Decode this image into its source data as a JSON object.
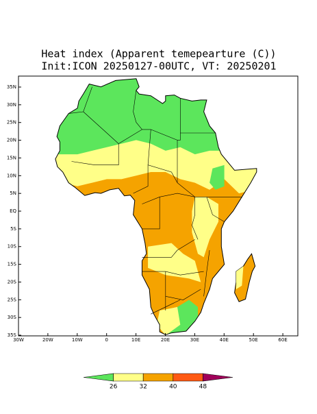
{
  "title": [
    "Heat index (Apparent temepearture (C))",
    "Init:ICON 20250127-00UTC, VT: 20250201"
  ],
  "map": {
    "lat_labels": [
      "35N",
      "30N",
      "25N",
      "20N",
      "15N",
      "10N",
      "5N",
      "EQ",
      "5S",
      "10S",
      "15S",
      "20S",
      "25S",
      "30S",
      "35S"
    ],
    "lon_labels": [
      "30W",
      "20W",
      "10W",
      "0",
      "10E",
      "20E",
      "30E",
      "40E",
      "50E",
      "60E"
    ]
  },
  "colorbar": {
    "labels": [
      26,
      32,
      40,
      48
    ],
    "colors": [
      "#5ce65c",
      "#ffff88",
      "#f5a300",
      "#ff5a14",
      "#a0005a"
    ]
  }
}
